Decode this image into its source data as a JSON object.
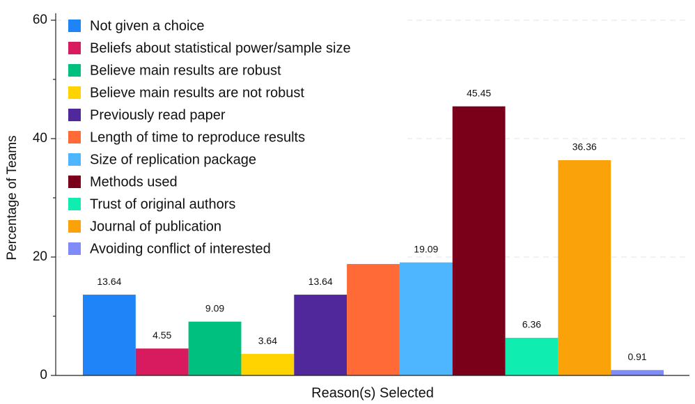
{
  "chart_data": {
    "type": "bar",
    "xlabel": "Reason(s) Selected",
    "ylabel": "Percentage of Teams",
    "categories": [
      "Not given a choice",
      "Beliefs about statistical power/sample size",
      "Believe main results are robust",
      "Believe main results are not robust",
      "Previously read paper",
      "Length of time to reproduce results",
      "Size of replication package",
      "Methods used",
      "Trust of original authors",
      "Journal of publication",
      "Avoiding conflict of interested"
    ],
    "values": [
      13.64,
      4.55,
      9.09,
      3.64,
      13.64,
      18.82,
      19.09,
      45.45,
      6.36,
      36.36,
      0.91
    ],
    "colors": [
      "#1f84f7",
      "#d81a5f",
      "#00c07f",
      "#ffd300",
      "#51289b",
      "#ff6a37",
      "#4db6fe",
      "#7a0019",
      "#10edb0",
      "#f9a20a",
      "#7f8cf8"
    ],
    "ylim": [
      0,
      60
    ],
    "yticks": [
      0,
      20,
      40,
      60
    ],
    "yminor_ticks": [
      10,
      30,
      50
    ],
    "grid": true,
    "legend": "upper left"
  }
}
